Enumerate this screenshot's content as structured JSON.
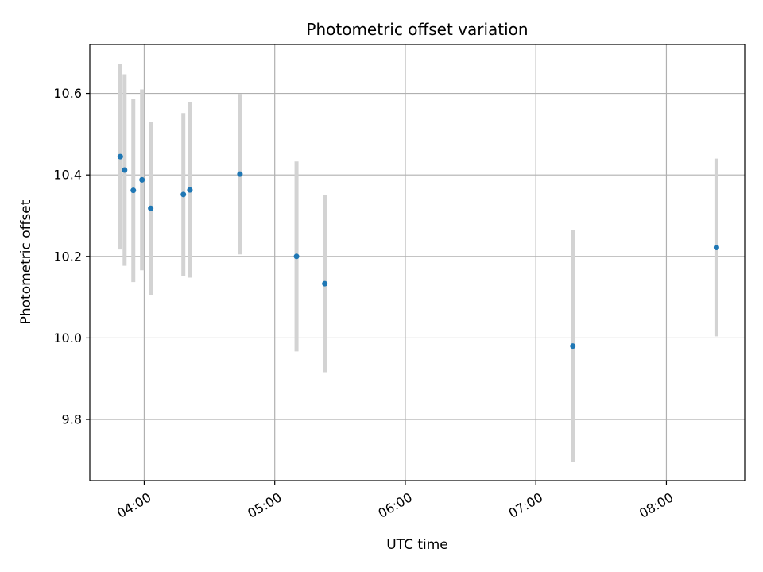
{
  "chart_data": {
    "type": "scatter",
    "title": "Photometric offset variation",
    "xlabel": "UTC time",
    "ylabel": "Photometric offset",
    "x_ticks": [
      "04:00",
      "05:00",
      "06:00",
      "07:00",
      "08:00"
    ],
    "y_ticks": [
      "9.8",
      "10.0",
      "10.2",
      "10.4",
      "10.6"
    ],
    "xlim": [
      "03:35",
      "08:36"
    ],
    "ylim": [
      9.65,
      10.72
    ],
    "grid": true,
    "series": [
      {
        "marker_color": "#1f77b4",
        "errorbar_color": "#d3d3d3",
        "points": [
          {
            "time": "03:49",
            "y": 10.445,
            "err": 0.228
          },
          {
            "time": "03:51",
            "y": 10.412,
            "err": 0.235
          },
          {
            "time": "03:55",
            "y": 10.362,
            "err": 0.225
          },
          {
            "time": "03:59",
            "y": 10.388,
            "err": 0.222
          },
          {
            "time": "04:03",
            "y": 10.318,
            "err": 0.212
          },
          {
            "time": "04:18",
            "y": 10.352,
            "err": 0.2
          },
          {
            "time": "04:21",
            "y": 10.363,
            "err": 0.215
          },
          {
            "time": "04:44",
            "y": 10.402,
            "err": 0.197
          },
          {
            "time": "05:10",
            "y": 10.2,
            "err": 0.233
          },
          {
            "time": "05:23",
            "y": 10.133,
            "err": 0.217
          },
          {
            "time": "07:17",
            "y": 9.98,
            "err": 0.285
          },
          {
            "time": "08:23",
            "y": 10.222,
            "err": 0.218
          }
        ]
      }
    ]
  }
}
